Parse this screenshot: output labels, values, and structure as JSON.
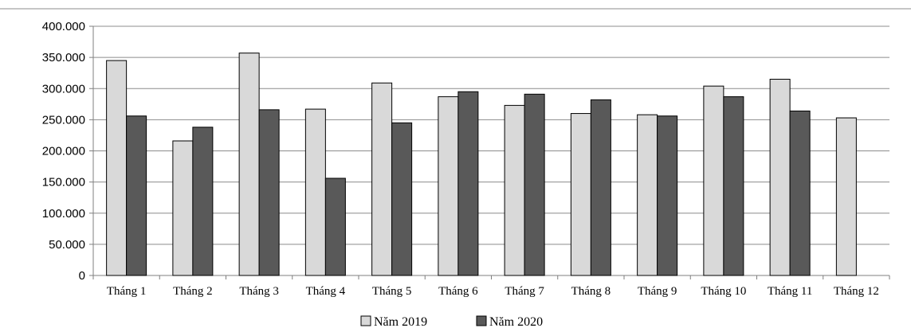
{
  "chart_data": {
    "type": "bar",
    "categories": [
      "Tháng 1",
      "Tháng 2",
      "Tháng 3",
      "Tháng 4",
      "Tháng 5",
      "Tháng 6",
      "Tháng 7",
      "Tháng 8",
      "Tháng 9",
      "Tháng 10",
      "Tháng 11",
      "Tháng 12"
    ],
    "series": [
      {
        "name": "Năm 2019",
        "color": "#d9d9d9",
        "values": [
          345000,
          216000,
          357000,
          267000,
          309000,
          287000,
          273000,
          260000,
          258000,
          304000,
          315000,
          253000
        ]
      },
      {
        "name": "Năm 2020",
        "color": "#595959",
        "values": [
          256000,
          238000,
          266000,
          156000,
          245000,
          295000,
          291000,
          282000,
          256000,
          287000,
          264000,
          null
        ]
      }
    ],
    "ylim": [
      0,
      400000
    ],
    "yticks": [
      0,
      50000,
      100000,
      150000,
      200000,
      250000,
      300000,
      350000,
      400000
    ],
    "ytick_labels": [
      "0",
      "50.000",
      "100.000",
      "150.000",
      "200.000",
      "250.000",
      "300.000",
      "350.000",
      "400.000"
    ],
    "grid": true,
    "legend_position": "bottom",
    "title": "",
    "xlabel": "",
    "ylabel": ""
  }
}
